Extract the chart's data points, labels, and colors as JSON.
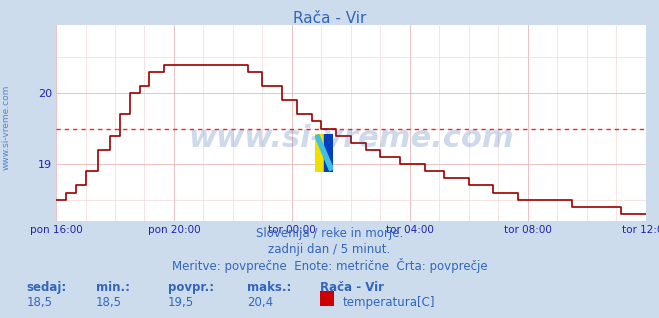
{
  "title": "Rača - Vir",
  "background_color": "#ccdcec",
  "plot_bg_color": "#ffffff",
  "grid_color_major": "#e8b8b8",
  "grid_color_minor": "#f0d0d0",
  "line_color": "#990000",
  "avg_line_color": "#ff2020",
  "avg_value": 19.5,
  "y_min": 18.2,
  "y_max": 20.95,
  "y_ticks": [
    19,
    20
  ],
  "x_labels": [
    "pon 16:00",
    "pon 20:00",
    "tor 00:00",
    "tor 04:00",
    "tor 08:00",
    "tor 12:00"
  ],
  "x_tick_positions": [
    0,
    48,
    96,
    144,
    192,
    240
  ],
  "total_points": 241,
  "watermark": "www.si-vreme.com",
  "watermark_color": "#2255aa",
  "watermark_alpha": 0.22,
  "ylabel_text": "www.si-vreme.com",
  "ylabel_color": "#3366bb",
  "footer_lines": [
    "Slovenija / reke in morje.",
    "zadnji dan / 5 minut.",
    "Meritve: povprečne  Enote: metrične  Črta: povprečje"
  ],
  "footer_color": "#3366bb",
  "footer_fontsize": 8.5,
  "stats_labels": [
    "sedaj:",
    "min.:",
    "povpr.:",
    "maks.:"
  ],
  "stats_values": [
    "18,5",
    "18,5",
    "19,5",
    "20,4"
  ],
  "stats_color": "#3366bb",
  "legend_station": "Rača - Vir",
  "legend_label": "temperatura[C]",
  "legend_color": "#cc0000",
  "title_color": "#3366bb",
  "axis_color": "#2222aa",
  "spine_color": "#2222aa"
}
